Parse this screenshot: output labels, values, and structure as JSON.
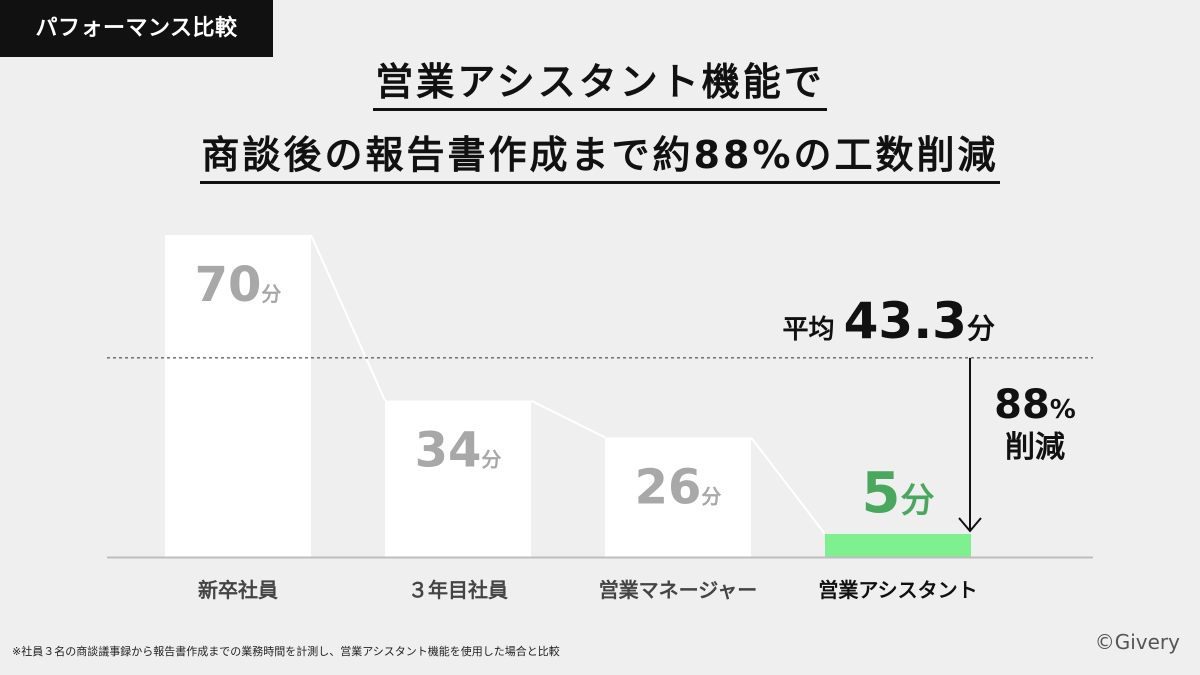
{
  "tag_label": "パフォーマンス比較",
  "title_line1": "営業アシスタント機能で",
  "title_line2": "商談後の報告書作成まで約88%の工数削減",
  "chart_data": {
    "type": "bar",
    "unit": "分",
    "categories": [
      "新卒社員",
      "３年目社員",
      "営業マネージャー",
      "営業アシスタント"
    ],
    "values": [
      70,
      34,
      26,
      5
    ],
    "highlight_index": 3,
    "average": {
      "label": "平均",
      "value": "43.3",
      "unit": "分",
      "numeric": 43.3
    },
    "reduction": {
      "value": "88",
      "unit": "%",
      "label": "削減"
    },
    "ylim": [
      0,
      70
    ]
  },
  "colors": {
    "bar": "#ffffff",
    "bar_highlight": "#7ef08f",
    "value_text": "#a8a8a8",
    "value_highlight": "#4aa85e",
    "background": "#efefef"
  },
  "footnote": "※社員３名の商談議事録から報告書作成までの業務時間を計測し、営業アシスタント機能を使用した場合と比較",
  "copyright": "©Givery"
}
